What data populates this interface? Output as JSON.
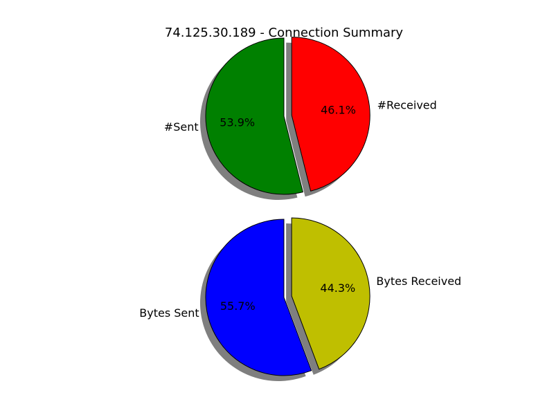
{
  "title": "74.125.30.189 - Connection Summary",
  "chart_data": [
    {
      "type": "pie",
      "slices": [
        {
          "label": "#Sent",
          "value": 53.9,
          "pct_label": "53.9%",
          "color": "#008000",
          "explode": false
        },
        {
          "label": "#Received",
          "value": 46.1,
          "pct_label": "46.1%",
          "color": "#ff0000",
          "explode": true
        }
      ]
    },
    {
      "type": "pie",
      "slices": [
        {
          "label": "Bytes Sent",
          "value": 55.7,
          "pct_label": "55.7%",
          "color": "#0000ff",
          "explode": false
        },
        {
          "label": "Bytes Received",
          "value": 44.3,
          "pct_label": "44.3%",
          "color": "#bfbf00",
          "explode": true
        }
      ]
    }
  ]
}
